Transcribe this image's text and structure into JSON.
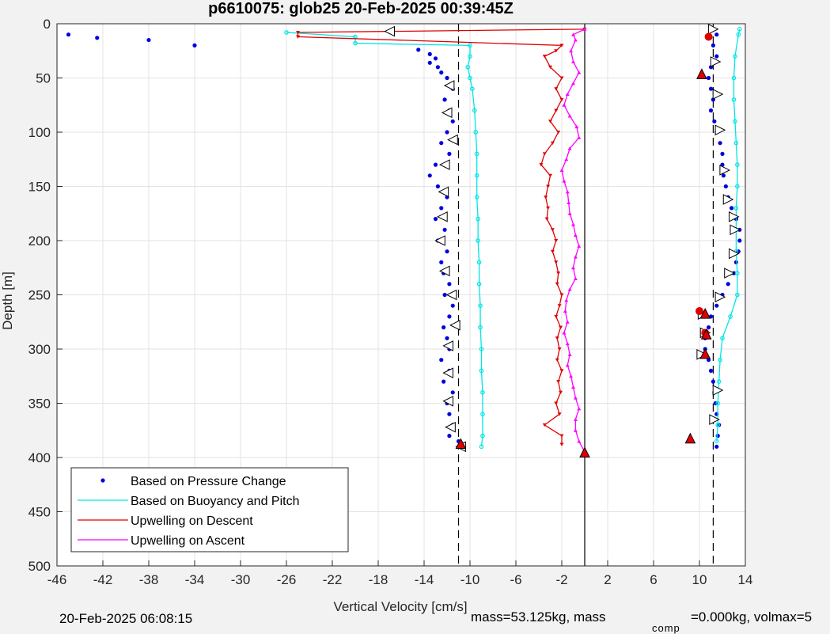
{
  "chart_data": {
    "type": "scatter",
    "title": "p6610075: glob25 20-Feb-2025 00:39:45Z",
    "xlabel": "Vertical Velocity [cm/s]",
    "ylabel": "Depth [m]",
    "xlim": [
      -46,
      14
    ],
    "ylim": [
      0,
      500
    ],
    "y_reversed": true,
    "xticks": [
      -46,
      -42,
      -38,
      -34,
      -30,
      -26,
      -22,
      -18,
      -14,
      -10,
      -6,
      -2,
      2,
      6,
      10,
      14
    ],
    "yticks": [
      0,
      50,
      100,
      150,
      200,
      250,
      300,
      350,
      400,
      450,
      500
    ],
    "grid": true,
    "legend_position": "bottom-left",
    "reference_lines": {
      "dashed": [
        -11,
        11.2
      ],
      "solid": [
        0
      ]
    },
    "series": [
      {
        "name": "Based on Pressure Change",
        "color": "#0000e0",
        "marker": "dot",
        "descent": {
          "depth": [
            10,
            13,
            15,
            20,
            24,
            28,
            32,
            36,
            40,
            45,
            50,
            60,
            70,
            80,
            90,
            100,
            110,
            120,
            130,
            140,
            150,
            160,
            170,
            180,
            190,
            200,
            210,
            220,
            230,
            240,
            250,
            260,
            270,
            280,
            290,
            300,
            310,
            320,
            330,
            340,
            350,
            360,
            370,
            380,
            385
          ],
          "vel": [
            -45,
            -42.5,
            -38,
            -34,
            -14.5,
            -13.5,
            -13,
            -13.5,
            -12.8,
            -12.5,
            -12,
            -11.5,
            -12.2,
            -11.8,
            -11.5,
            -12,
            -12.5,
            -11.8,
            -13,
            -13.5,
            -12.8,
            -12,
            -12.5,
            -13,
            -12.2,
            -12.8,
            -12,
            -12.5,
            -12.3,
            -11.8,
            -12.2,
            -11.5,
            -11.8,
            -12.3,
            -12,
            -11.8,
            -12.5,
            -11.8,
            -12.3,
            -11.5,
            -12,
            -11.8,
            -11.5,
            -11.8,
            -11
          ]
        },
        "ascent": {
          "depth": [
            390,
            380,
            370,
            360,
            350,
            340,
            330,
            320,
            310,
            300,
            290,
            280,
            270,
            260,
            250,
            240,
            230,
            220,
            210,
            200,
            190,
            180,
            170,
            160,
            150,
            140,
            130,
            120,
            110,
            100,
            90,
            80,
            70,
            60,
            50,
            40,
            30,
            20,
            10,
            5
          ],
          "vel": [
            11.5,
            11.6,
            11.7,
            11.5,
            11.4,
            11.3,
            11.2,
            11,
            10.8,
            10.5,
            10.5,
            10.8,
            11,
            11.5,
            12,
            12.5,
            13,
            13.2,
            13.4,
            13.5,
            13.5,
            13.2,
            12.8,
            12.5,
            12.3,
            12.1,
            12,
            12,
            11.8,
            11.5,
            11.3,
            11,
            11.2,
            11,
            10.8,
            11,
            11.5,
            11.2,
            11.5,
            11
          ]
        }
      },
      {
        "name": "Based on Buoyancy and Pitch",
        "color": "#00e5e5",
        "marker": "circle-line",
        "descent": {
          "depth": [
            8,
            12,
            18,
            20,
            30,
            40,
            50,
            60,
            80,
            100,
            120,
            140,
            160,
            180,
            200,
            220,
            240,
            260,
            280,
            300,
            320,
            340,
            360,
            380,
            390
          ],
          "vel": [
            -26,
            -20,
            -20,
            -10,
            -10,
            -10.2,
            -10,
            -9.8,
            -9.6,
            -9.5,
            -9.4,
            -9.4,
            -9.4,
            -9.3,
            -9.3,
            -9.2,
            -9.2,
            -9.1,
            -9.1,
            -9,
            -9,
            -8.9,
            -8.9,
            -8.9,
            -9
          ]
        },
        "ascent": {
          "depth": [
            385,
            370,
            350,
            330,
            310,
            290,
            270,
            250,
            230,
            210,
            190,
            170,
            150,
            130,
            110,
            90,
            70,
            50,
            30,
            10,
            5
          ],
          "vel": [
            11.5,
            11.6,
            11.6,
            11.7,
            11.8,
            12,
            12.7,
            13.3,
            13.3,
            13.2,
            13.2,
            13.2,
            13.3,
            13.3,
            13.2,
            13.1,
            13,
            13,
            13.1,
            13.4,
            13.5
          ]
        }
      },
      {
        "name": "Upwelling on Descent",
        "color": "#e00000",
        "marker": "triangle-down",
        "depth": [
          5,
          8,
          12,
          20,
          25,
          30,
          40,
          50,
          60,
          70,
          80,
          90,
          100,
          110,
          120,
          130,
          140,
          150,
          160,
          170,
          180,
          190,
          200,
          210,
          220,
          230,
          240,
          250,
          260,
          270,
          280,
          290,
          300,
          310,
          320,
          330,
          340,
          350,
          360,
          370,
          380,
          388
        ],
        "vel": [
          0,
          -25,
          -25,
          -2,
          -2.5,
          -3.5,
          -3,
          -2,
          -2.5,
          -2,
          -2.5,
          -3,
          -2.3,
          -2.8,
          -3.5,
          -3.8,
          -3,
          -3.2,
          -3.4,
          -3.2,
          -3.3,
          -2.8,
          -2.5,
          -2.8,
          -2.5,
          -2.3,
          -2.4,
          -2,
          -2.2,
          -2.5,
          -2.1,
          -2.4,
          -2.2,
          -2.4,
          -2,
          -2.3,
          -2.1,
          -2.5,
          -2.2,
          -3.5,
          -2,
          -2
        ]
      },
      {
        "name": "Upwelling on Ascent",
        "color": "#ff00ff",
        "marker": "triangle-up",
        "depth": [
          395,
          385,
          375,
          365,
          355,
          345,
          335,
          325,
          315,
          305,
          295,
          285,
          275,
          265,
          255,
          245,
          235,
          225,
          215,
          205,
          195,
          185,
          175,
          165,
          155,
          145,
          135,
          125,
          115,
          105,
          95,
          85,
          75,
          65,
          55,
          45,
          35,
          25,
          15,
          10,
          5
        ],
        "vel": [
          0,
          -0.5,
          -0.8,
          -0.8,
          -0.5,
          -0.8,
          -1,
          -1.2,
          -1.5,
          -1.3,
          -1.5,
          -1.8,
          -1.5,
          -1.7,
          -1.6,
          -1.3,
          -0.8,
          -1,
          -0.8,
          -0.5,
          -0.8,
          -1,
          -1.3,
          -1.4,
          -1.5,
          -1.8,
          -2,
          -1.6,
          -1.3,
          -0.5,
          -0.7,
          -1.3,
          -1.8,
          -1.5,
          -1,
          -0.5,
          -1,
          -1.2,
          -0.8,
          -1,
          0
        ]
      }
    ],
    "markers": {
      "open_triangles_descent": [
        [
          -17,
          7
        ],
        [
          -11.8,
          57
        ],
        [
          -12,
          82
        ],
        [
          -11.5,
          107
        ],
        [
          -12.2,
          130
        ],
        [
          -12.3,
          155
        ],
        [
          -12.4,
          178
        ],
        [
          -12.6,
          200
        ],
        [
          -12.2,
          228
        ],
        [
          -11.6,
          250
        ],
        [
          -11.3,
          278
        ],
        [
          -11.9,
          297
        ],
        [
          -11.9,
          322
        ],
        [
          -11.9,
          348
        ],
        [
          -11.7,
          372
        ],
        [
          -10.8,
          390
        ]
      ],
      "open_triangles_ascent": [
        [
          11.2,
          5
        ],
        [
          11.4,
          35
        ],
        [
          11.6,
          65
        ],
        [
          11.8,
          98
        ],
        [
          12.2,
          135
        ],
        [
          12.5,
          162
        ],
        [
          13,
          178
        ],
        [
          13.1,
          190
        ],
        [
          13,
          212
        ],
        [
          12.6,
          230
        ],
        [
          11.8,
          252
        ],
        [
          10.3,
          268
        ],
        [
          10.5,
          285
        ],
        [
          10.2,
          305
        ],
        [
          11.6,
          338
        ],
        [
          11.3,
          365
        ]
      ],
      "red_dots": [
        [
          10.8,
          12
        ],
        [
          10,
          265
        ],
        [
          10.5,
          285
        ]
      ],
      "red_triangles": [
        [
          10.2,
          47
        ],
        [
          10.5,
          268
        ],
        [
          10.6,
          287
        ],
        [
          10.5,
          305
        ],
        [
          9.2,
          383
        ],
        [
          -10.8,
          388
        ],
        [
          0,
          396
        ]
      ]
    }
  },
  "footer": {
    "date": "20-Feb-2025 06:08:15",
    "mass": "mass=53.125kg, mass",
    "comp_sub": "comp",
    "vol": "=0.000kg, volmax=5"
  }
}
